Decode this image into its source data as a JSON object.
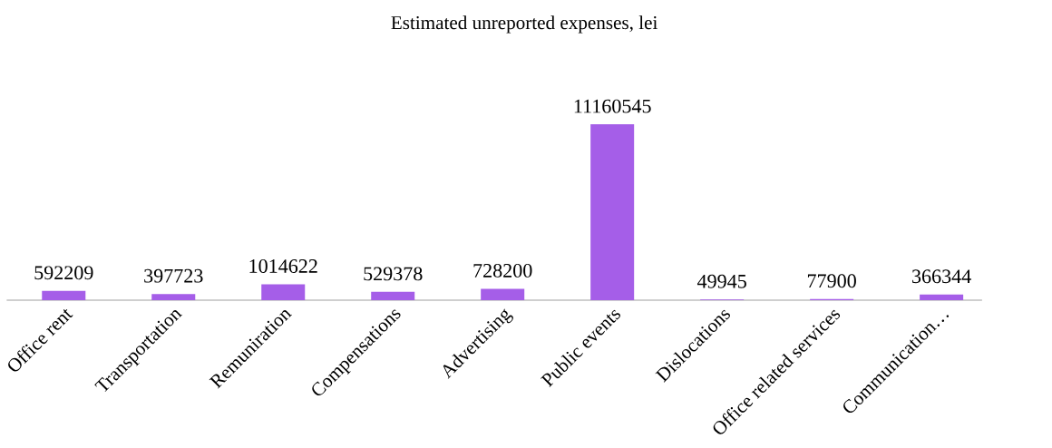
{
  "chart_data": {
    "type": "bar",
    "title": "Estimated unreported expenses, lei",
    "categories": [
      "Office rent",
      "Transportation",
      "Remuniration",
      "Compensations",
      "Advertising",
      "Public events",
      "Dislocations",
      "Office related services",
      "Communication…"
    ],
    "values": [
      592209,
      397723,
      1014622,
      529378,
      728200,
      11160545,
      49945,
      77900,
      366344
    ],
    "color": "#a55ee8",
    "data_labels": true
  }
}
